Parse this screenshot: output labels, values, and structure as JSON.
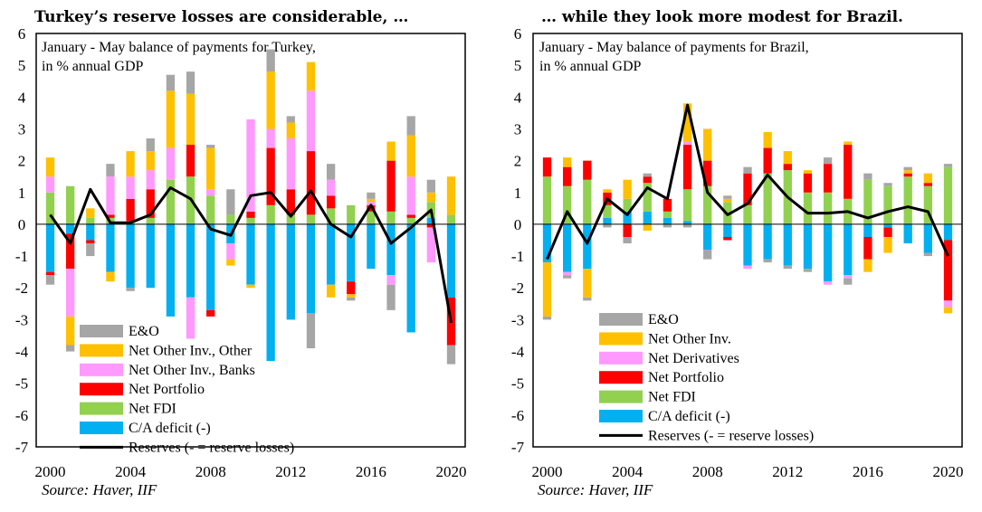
{
  "chart_data": [
    {
      "type": "bar",
      "stacked": true,
      "title": "Turkey’s reserve losses are considerable, …",
      "subtitle_lines": [
        "January - May balance of payments for Turkey,",
        "in % annual GDP"
      ],
      "source": "Source: Haver, IIF",
      "ylim": [
        -7,
        6
      ],
      "yticks": [
        "-7",
        "-6",
        "-5",
        "-4",
        "-3",
        "-2",
        "-1",
        "0",
        "1",
        "2",
        "3",
        "4",
        "5",
        "6"
      ],
      "xtick_labels": [
        "2000",
        "2004",
        "2008",
        "2012",
        "2016",
        "2020"
      ],
      "categories": [
        "2000",
        "2001",
        "2002",
        "2003",
        "2004",
        "2005",
        "2006",
        "2007",
        "2008",
        "2009",
        "2010",
        "2011",
        "2012",
        "2013",
        "2014",
        "2015",
        "2016",
        "2017",
        "2018",
        "2019",
        "2020"
      ],
      "grid": false,
      "legend_position": "bottom-left",
      "series": [
        {
          "name": "E&O",
          "color": "#a6a6a6",
          "values": [
            -0.3,
            -0.2,
            -0.4,
            0.4,
            -0.1,
            0.4,
            0.5,
            0.7,
            0.1,
            0.8,
            0.0,
            0.7,
            0.2,
            -1.1,
            0.5,
            -0.1,
            0.2,
            -0.8,
            0.6,
            0.4,
            -0.6
          ]
        },
        {
          "name": "Net Other Inv., Other",
          "color": "#ffc000",
          "values": [
            0.6,
            -0.9,
            0.3,
            -0.3,
            0.8,
            0.6,
            1.8,
            1.6,
            1.3,
            -0.2,
            -0.1,
            1.8,
            0.5,
            0.9,
            -0.4,
            -0.1,
            0.1,
            0.6,
            1.3,
            0.3,
            1.2
          ]
        },
        {
          "name": "Net Other Inv., Banks",
          "color": "#ff99ff",
          "values": [
            0.5,
            -1.5,
            0.0,
            1.2,
            0.7,
            0.6,
            1.0,
            -1.3,
            0.2,
            -0.5,
            2.9,
            0.6,
            1.6,
            1.9,
            0.5,
            0.0,
            0.1,
            -0.3,
            1.2,
            -1.1,
            0.0
          ]
        },
        {
          "name": "Net Portfolio",
          "color": "#ff0000",
          "values": [
            -0.1,
            -1.1,
            -0.1,
            0.1,
            0.7,
            0.9,
            0.0,
            1.0,
            -0.2,
            0.0,
            0.2,
            1.8,
            0.8,
            2.0,
            0.4,
            -0.4,
            0.2,
            1.6,
            0.1,
            -0.1,
            -1.5
          ]
        },
        {
          "name": "Net FDI",
          "color": "#92d050",
          "values": [
            1.0,
            1.2,
            0.2,
            0.2,
            0.1,
            0.2,
            1.4,
            1.5,
            0.9,
            0.3,
            0.2,
            0.6,
            0.3,
            0.3,
            0.5,
            0.6,
            0.4,
            0.4,
            0.2,
            0.5,
            0.3
          ]
        },
        {
          "name": "C/A deficit (-)",
          "color": "#00b0f0",
          "values": [
            -1.5,
            -0.3,
            -0.5,
            -1.5,
            -2.0,
            -2.0,
            -2.9,
            -2.3,
            -2.7,
            -0.6,
            -1.9,
            -4.3,
            -3.0,
            -2.8,
            -1.9,
            -1.8,
            -1.4,
            -1.6,
            -3.4,
            0.2,
            -2.3
          ]
        }
      ],
      "reserves": {
        "name": "Reserves (- = reserve losses)",
        "color": "#000000",
        "values": [
          0.3,
          -0.6,
          1.1,
          0.05,
          0.05,
          0.3,
          1.15,
          0.8,
          -0.15,
          -0.35,
          0.9,
          1.0,
          0.25,
          1.05,
          0.0,
          -0.4,
          0.6,
          -0.6,
          -0.1,
          0.45,
          -3.1
        ]
      }
    },
    {
      "type": "bar",
      "stacked": true,
      "title": "… while they look more modest for Brazil.",
      "subtitle_lines": [
        "January - May balance of payments for Brazil,",
        "in % annual GDP"
      ],
      "source": "Source: Haver, IIF",
      "ylim": [
        -7,
        6
      ],
      "yticks": [
        "-7",
        "-6",
        "-5",
        "-4",
        "-3",
        "-2",
        "-1",
        "0",
        "1",
        "2",
        "3",
        "4",
        "5",
        "6"
      ],
      "xtick_labels": [
        "2000",
        "2004",
        "2008",
        "2012",
        "2016",
        "2020"
      ],
      "categories": [
        "2000",
        "2001",
        "2002",
        "2003",
        "2004",
        "2005",
        "2006",
        "2007",
        "2008",
        "2009",
        "2010",
        "2011",
        "2012",
        "2013",
        "2014",
        "2015",
        "2016",
        "2017",
        "2018",
        "2019",
        "2020"
      ],
      "grid": false,
      "legend_position": "bottom-left",
      "series": [
        {
          "name": "E&O",
          "color": "#a6a6a6",
          "values": [
            -0.1,
            -0.1,
            -0.1,
            -0.1,
            -0.2,
            0.1,
            -0.1,
            -0.1,
            -0.3,
            0.1,
            0.2,
            -0.1,
            -0.1,
            -0.1,
            0.2,
            -0.2,
            0.2,
            0.1,
            0.1,
            -0.1,
            0.1
          ]
        },
        {
          "name": "Net Other Inv.",
          "color": "#ffc000",
          "values": [
            -1.7,
            0.3,
            -0.9,
            0.1,
            0.6,
            -0.2,
            0.0,
            1.2,
            1.0,
            0.1,
            0.0,
            0.5,
            0.4,
            0.1,
            0.0,
            0.1,
            -0.4,
            -0.5,
            0.1,
            0.3,
            -0.2
          ]
        },
        {
          "name": "Net Derivatives",
          "color": "#ff99ff",
          "values": [
            0.0,
            -0.1,
            0.0,
            0.0,
            0.0,
            0.0,
            0.0,
            0.1,
            0.0,
            0.0,
            -0.1,
            0.0,
            0.0,
            0.0,
            -0.1,
            -0.1,
            0.0,
            0.0,
            0.0,
            0.0,
            -0.2
          ]
        },
        {
          "name": "Net Portfolio",
          "color": "#ff0000",
          "values": [
            0.6,
            0.6,
            0.6,
            0.4,
            -0.4,
            0.2,
            0.4,
            1.4,
            0.8,
            -0.1,
            1.0,
            0.8,
            0.2,
            0.6,
            0.9,
            1.7,
            -0.7,
            -0.3,
            0.1,
            0.1,
            -1.9
          ]
        },
        {
          "name": "Net FDI",
          "color": "#92d050",
          "values": [
            1.5,
            1.2,
            1.4,
            0.4,
            0.4,
            0.9,
            0.2,
            1.0,
            1.2,
            0.7,
            0.6,
            1.6,
            1.7,
            1.0,
            1.0,
            0.8,
            1.4,
            1.2,
            1.5,
            1.2,
            1.8
          ]
        },
        {
          "name": "C/A deficit (-)",
          "color": "#00b0f0",
          "values": [
            -1.2,
            -1.5,
            -1.4,
            0.2,
            0.4,
            0.4,
            0.2,
            0.1,
            -0.8,
            -0.4,
            -1.3,
            -1.1,
            -1.3,
            -1.4,
            -1.8,
            -1.6,
            -0.4,
            -0.1,
            -0.6,
            -0.9,
            -0.5
          ]
        }
      ],
      "reserves": {
        "name": "Reserves (- = reserve losses)",
        "color": "#000000",
        "values": [
          -1.1,
          0.4,
          -0.6,
          0.8,
          0.3,
          1.15,
          0.8,
          3.75,
          1.0,
          0.3,
          0.65,
          1.55,
          0.85,
          0.35,
          0.35,
          0.4,
          0.2,
          0.4,
          0.55,
          0.4,
          -1.0
        ]
      }
    }
  ]
}
